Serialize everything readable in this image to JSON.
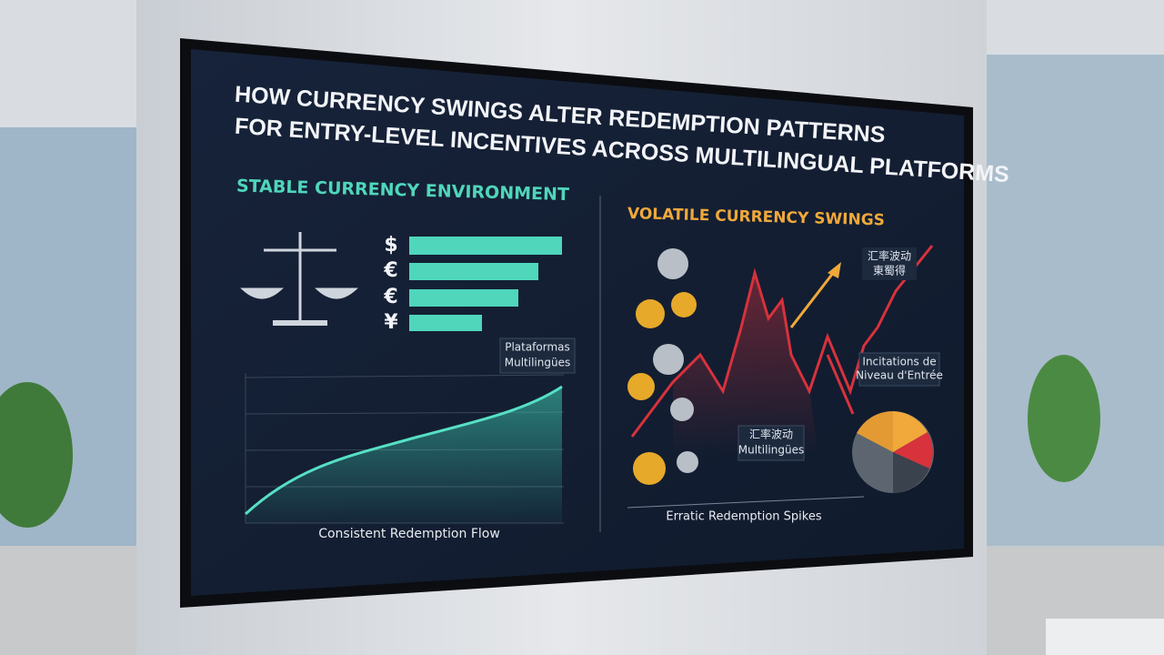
{
  "screen": {
    "title": [
      "HOW CURRENCY SWINGS ALTER REDEMPTION PATTERNS",
      "FOR ENTRY-LEVEL INCENTIVES ACROSS MULTILINGUAL PLATFORMS"
    ],
    "left": {
      "heading": "STABLE CURRENCY ENVIRONMENT",
      "symbols": [
        "$",
        "€",
        "€",
        "¥"
      ],
      "badge": [
        "Plataformas",
        "Multilingües"
      ],
      "caption": "Consistent Redemption Flow"
    },
    "right": {
      "heading": "VOLATILE CURRENCY SWINGS",
      "tag_top": [
        "汇率波动",
        "東蜀得"
      ],
      "tag_side": [
        "Incitations de",
        "Niveau d'Entrée"
      ],
      "tag_mid": [
        "汇率波动",
        "Multilingües"
      ],
      "caption": "Erratic Redemption Spikes"
    }
  }
}
